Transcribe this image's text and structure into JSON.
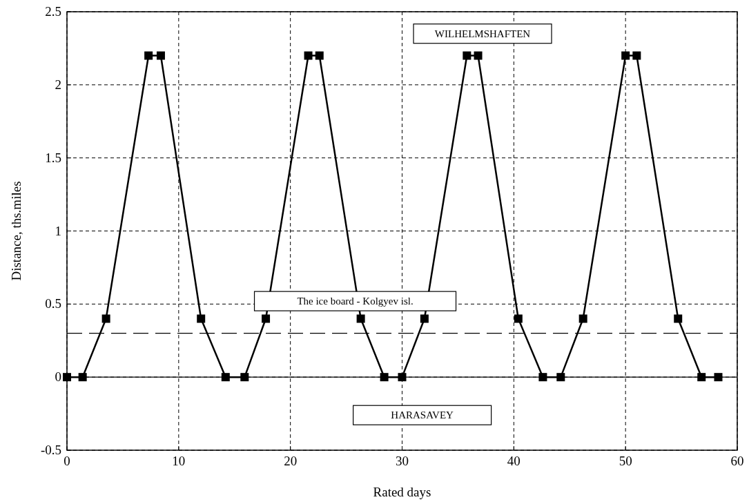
{
  "chart_data": {
    "type": "line",
    "xlabel": "Rated days",
    "ylabel": "Distance, ths.miles",
    "x": [
      0,
      1.4,
      3.5,
      7.3,
      8.4,
      12.0,
      14.2,
      15.9,
      17.8,
      21.6,
      22.6,
      26.3,
      28.4,
      30.0,
      32.0,
      35.8,
      36.8,
      40.4,
      42.6,
      44.2,
      46.2,
      50.0,
      51.0,
      54.7,
      56.8,
      58.3
    ],
    "series": [
      {
        "color": "#000000",
        "values": [
          0,
          0,
          0.4,
          2.2,
          2.2,
          0.4,
          0,
          0,
          0.4,
          2.2,
          2.2,
          0.4,
          0,
          0,
          0.4,
          2.2,
          2.2,
          0.4,
          0,
          0,
          0.4,
          2.2,
          2.2,
          0.4,
          0,
          0
        ]
      }
    ],
    "xlim": [
      0,
      60
    ],
    "xticks": [
      0,
      10,
      20,
      30,
      40,
      50,
      60
    ],
    "ylim": [
      -0.5,
      2.5
    ],
    "yticks": [
      -0.5,
      0,
      0.5,
      1,
      1.5,
      2,
      2.5
    ],
    "grid": true,
    "marker": "square",
    "line_style": "solid",
    "ref_lines": [
      {
        "axis": "y",
        "value": 0,
        "label": null,
        "line_style": "solid"
      },
      {
        "axis": "y",
        "value": 0.3,
        "label": null,
        "line_style": "dashed"
      }
    ],
    "annotations": [
      "WILHELMSHAFTEN",
      "The ice board - Kolgyev isl.",
      "HARASAVEY"
    ]
  }
}
